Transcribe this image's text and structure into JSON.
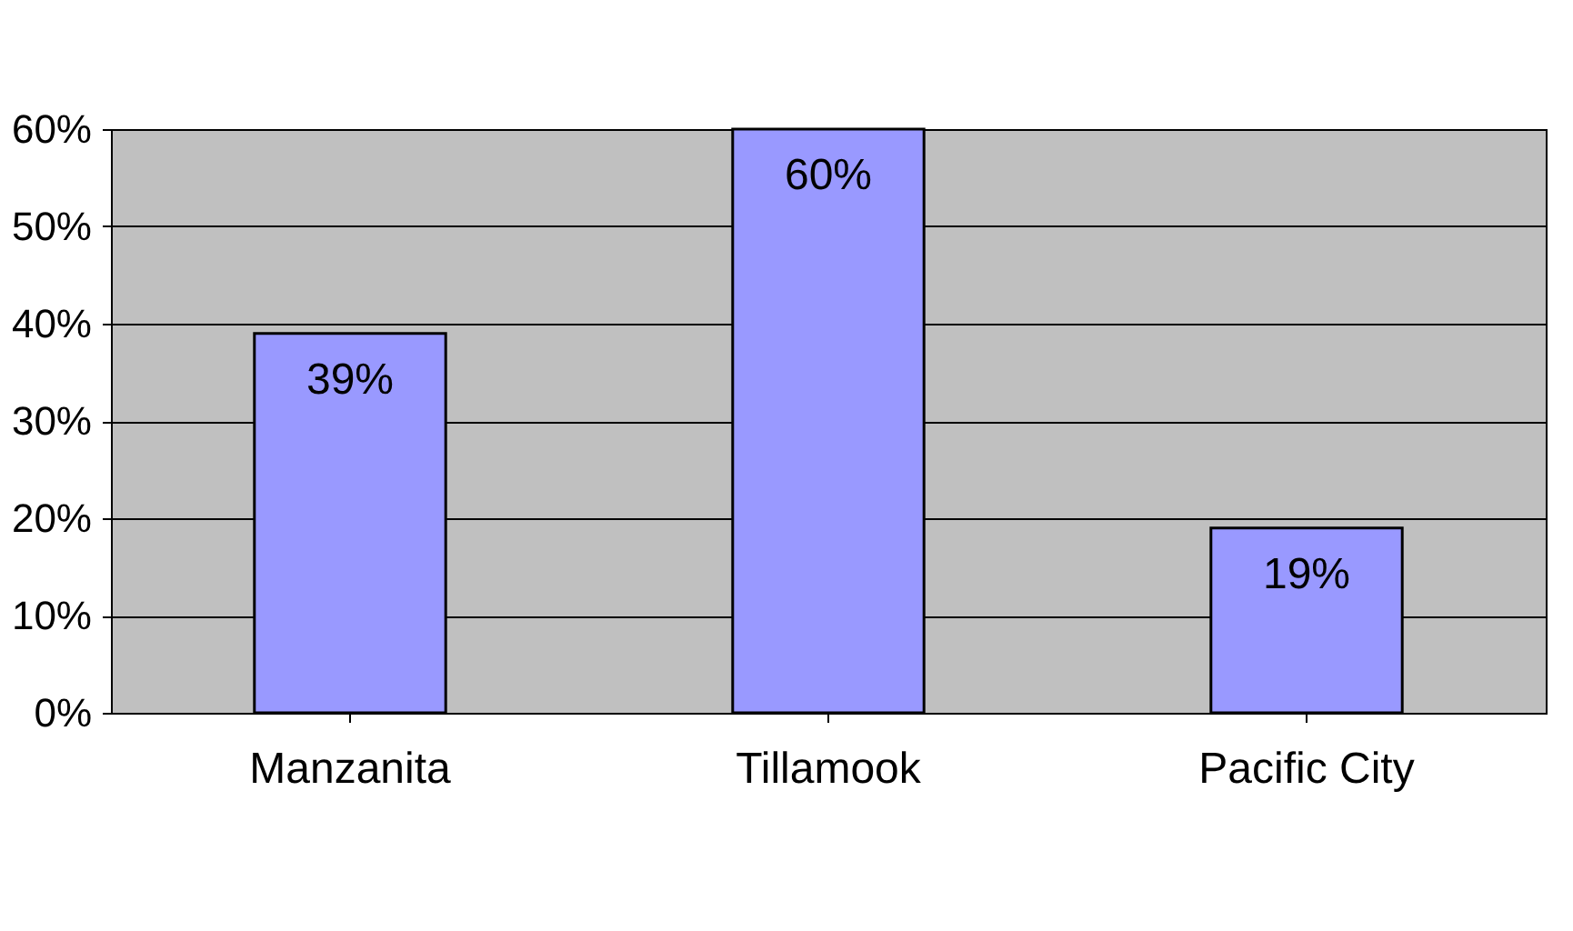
{
  "chart_data": {
    "type": "bar",
    "categories": [
      "Manzanita",
      "Tillamook",
      "Pacific City"
    ],
    "values": [
      39,
      60,
      19
    ],
    "value_labels": [
      "39%",
      "60%",
      "19%"
    ],
    "color": "#9999ff",
    "ylim": [
      0,
      60
    ],
    "yticks": [
      {
        "value": 0,
        "label": "0%"
      },
      {
        "value": 10,
        "label": "10%"
      },
      {
        "value": 20,
        "label": "20%"
      },
      {
        "value": 30,
        "label": "30%"
      },
      {
        "value": 40,
        "label": "40%"
      },
      {
        "value": 50,
        "label": "50%"
      },
      {
        "value": 60,
        "label": "60%"
      }
    ],
    "grid": "y"
  }
}
